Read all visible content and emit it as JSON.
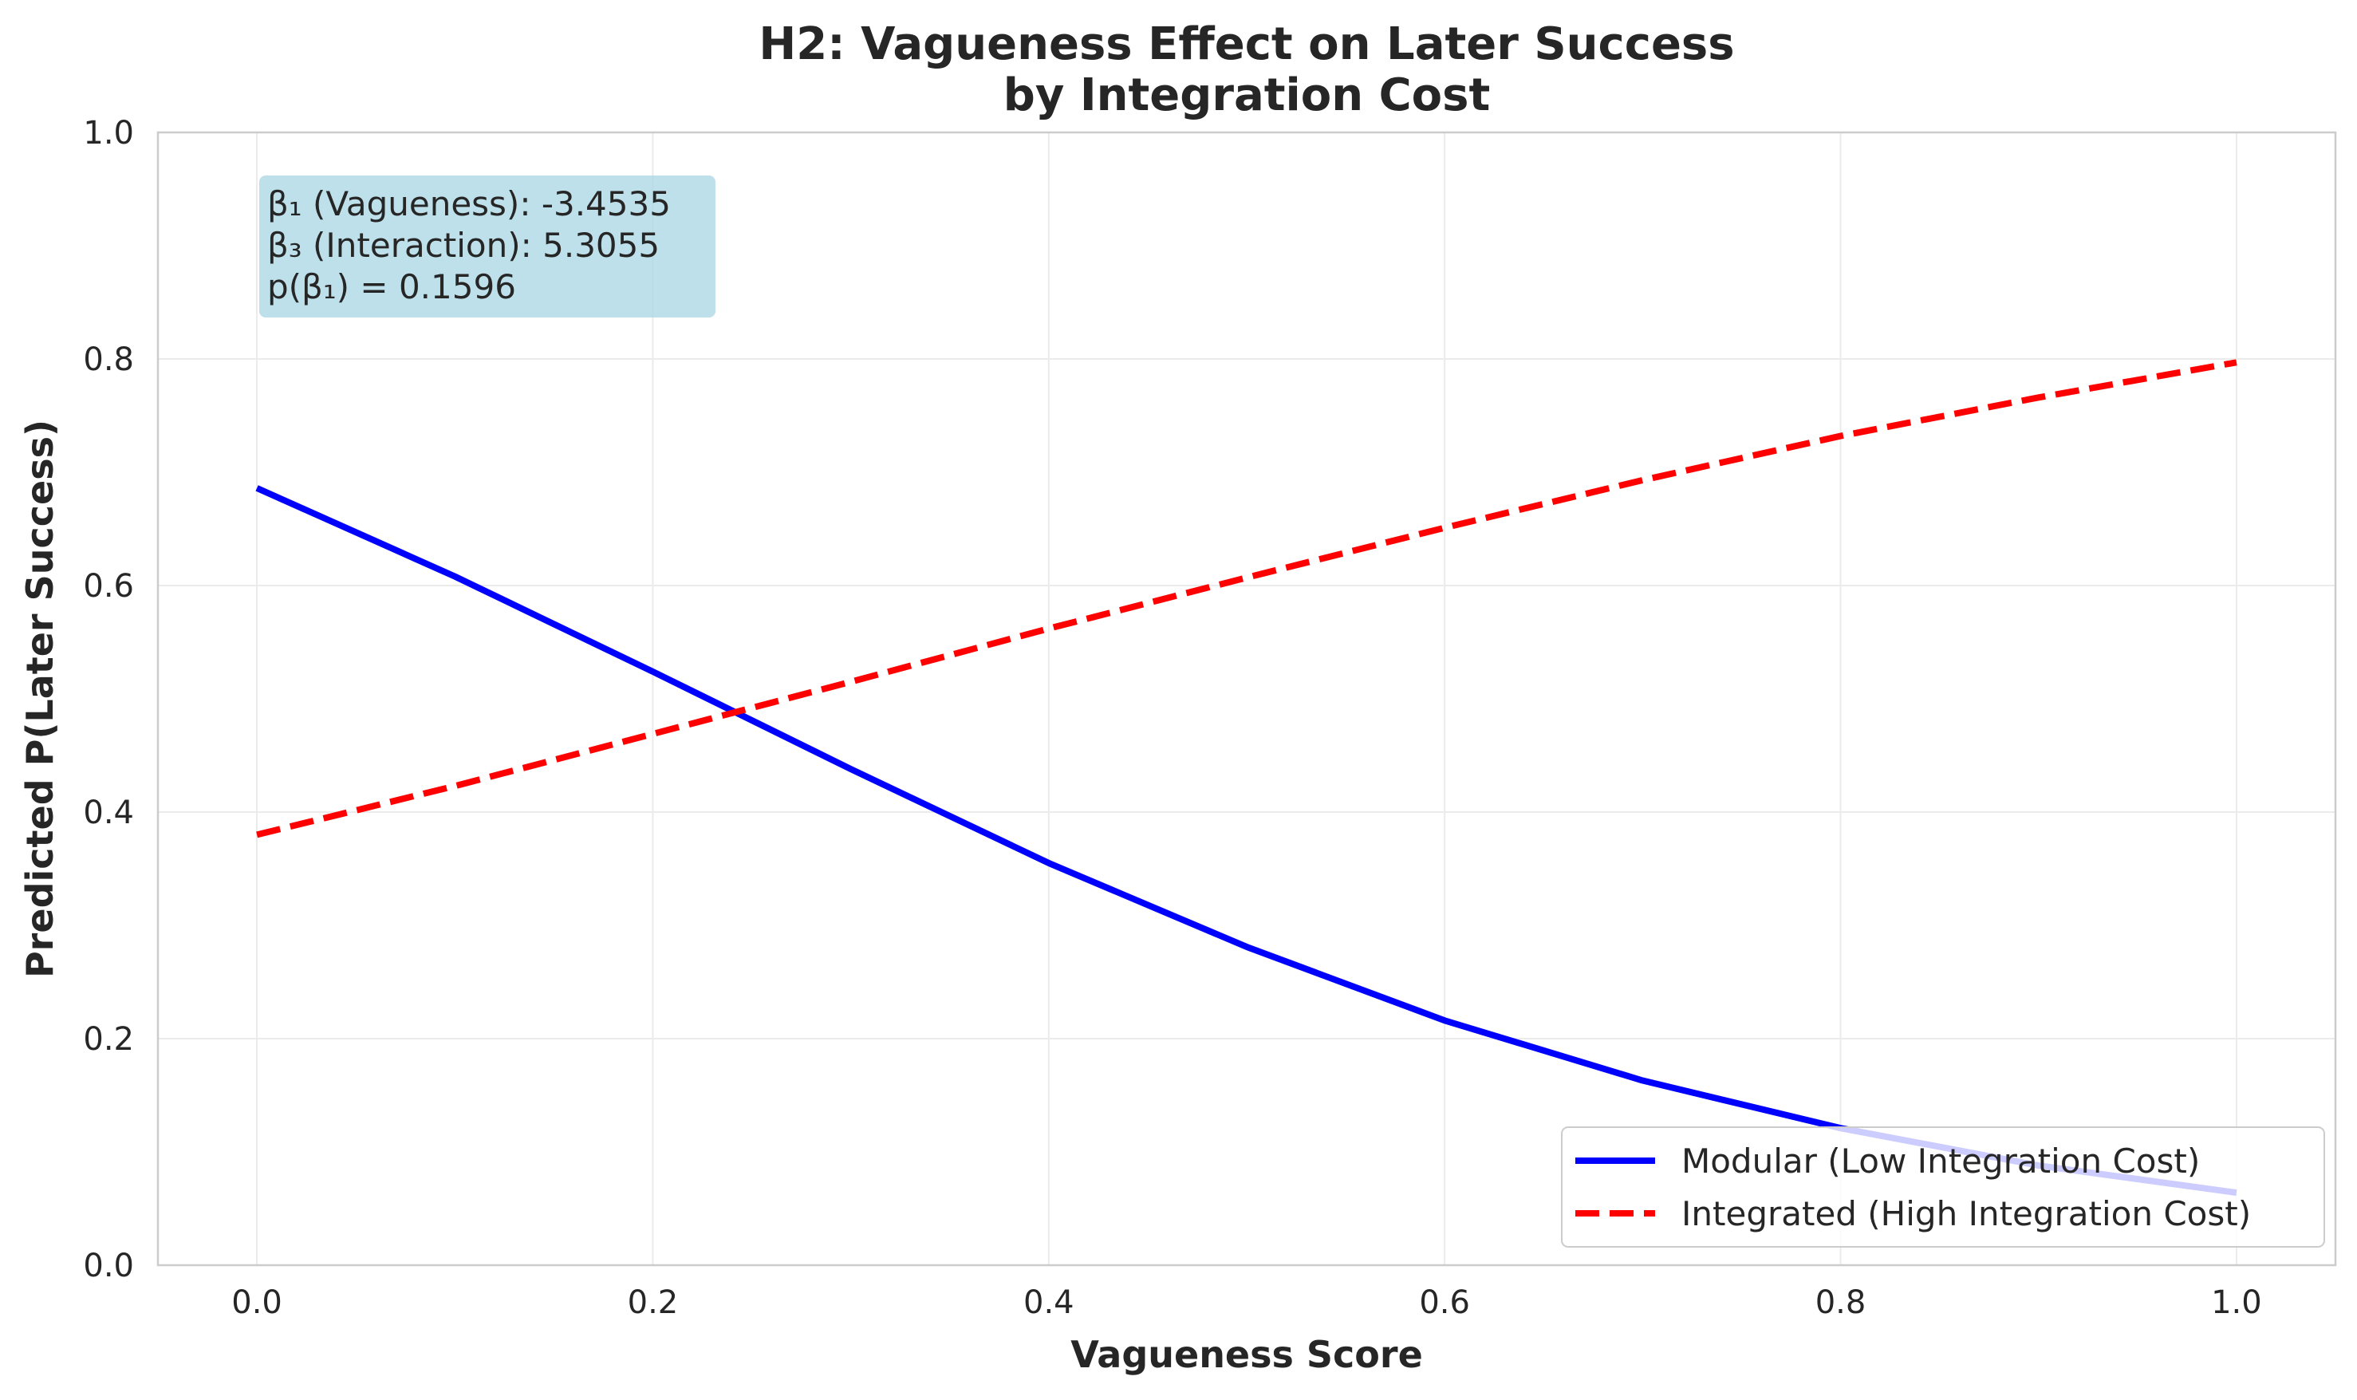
{
  "chart_data": {
    "type": "line",
    "title": [
      "H2: Vagueness Effect on Later Success",
      "by Integration Cost"
    ],
    "xlabel": "Vagueness Score",
    "ylabel": "Predicted P(Later Success)",
    "xlim": [
      -0.05,
      1.05
    ],
    "ylim": [
      0.0,
      1.0
    ],
    "xticks": [
      0.0,
      0.2,
      0.4,
      0.6,
      0.8,
      1.0
    ],
    "yticks": [
      0.0,
      0.2,
      0.4,
      0.6,
      0.8,
      1.0
    ],
    "grid": true,
    "legend_position": "lower-right",
    "series": [
      {
        "name": "Modular (Low Integration Cost)",
        "color": "#0000ff",
        "style": "solid",
        "x": [
          0.0,
          0.1,
          0.2,
          0.3,
          0.4,
          0.5,
          0.6,
          0.7,
          0.8,
          0.9,
          1.0
        ],
        "y": [
          0.686,
          0.608,
          0.524,
          0.438,
          0.355,
          0.281,
          0.216,
          0.163,
          0.121,
          0.088,
          0.064
        ]
      },
      {
        "name": "Integrated (High Integration Cost)",
        "color": "#ff0000",
        "style": "dashed",
        "x": [
          0.0,
          0.1,
          0.2,
          0.3,
          0.4,
          0.5,
          0.6,
          0.7,
          0.8,
          0.9,
          1.0
        ],
        "y": [
          0.38,
          0.423,
          0.469,
          0.515,
          0.562,
          0.607,
          0.651,
          0.693,
          0.732,
          0.766,
          0.797
        ]
      }
    ],
    "annotation": {
      "lines": [
        "β₁ (Vagueness): -3.4535",
        "β₃ (Interaction): 5.3055",
        "p(β₁) = 0.1596"
      ],
      "background": "#add8e6"
    }
  }
}
